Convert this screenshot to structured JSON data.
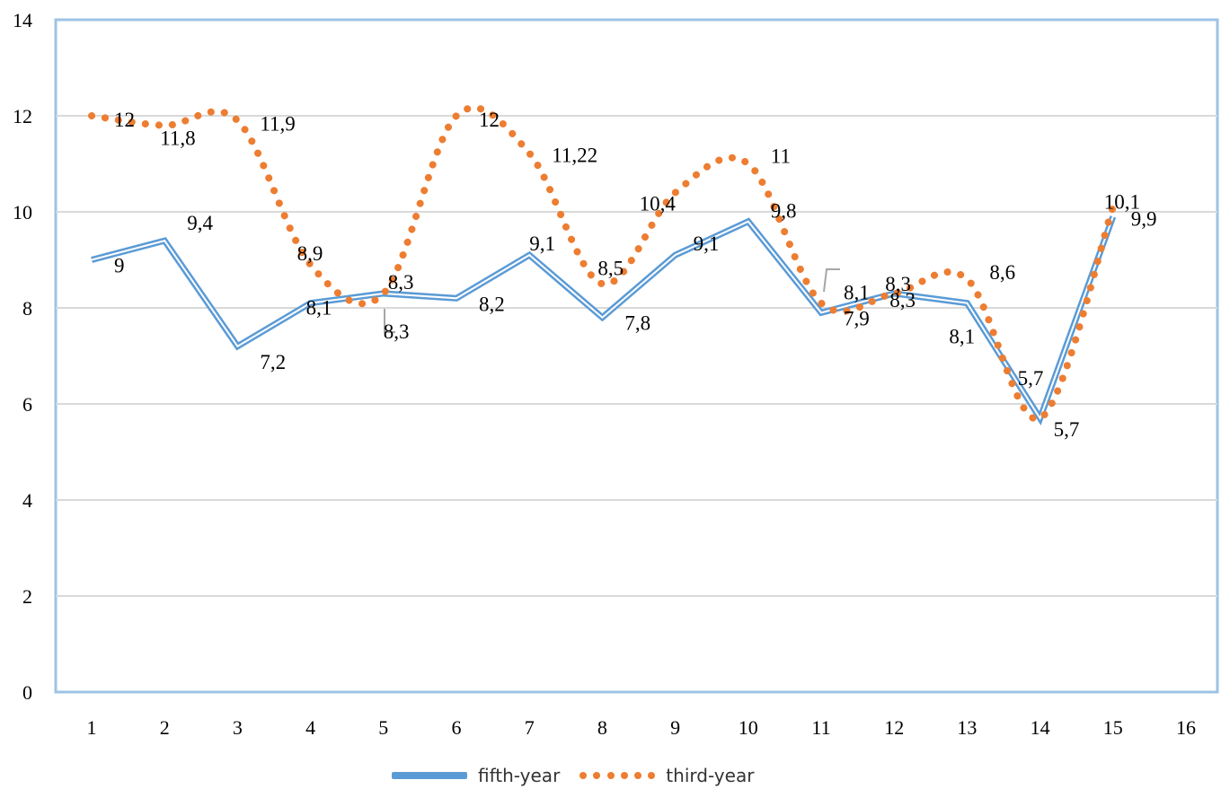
{
  "chart_data": {
    "type": "line",
    "x": [
      1,
      2,
      3,
      4,
      5,
      6,
      7,
      8,
      9,
      10,
      11,
      12,
      13,
      14,
      15
    ],
    "x_ticks": [
      "1",
      "2",
      "3",
      "4",
      "5",
      "6",
      "7",
      "8",
      "9",
      "10",
      "11",
      "12",
      "13",
      "14",
      "15",
      "16"
    ],
    "y_ticks": [
      "0",
      "2",
      "4",
      "6",
      "8",
      "10",
      "12",
      "14"
    ],
    "ylim": [
      0,
      14
    ],
    "grid": true,
    "legend_position": "bottom",
    "series": [
      {
        "name": "fifth-year",
        "color": "#5b9bd5",
        "style": "solid",
        "values": [
          9,
          9.4,
          7.2,
          8.1,
          8.3,
          8.2,
          9.1,
          7.8,
          9.1,
          9.8,
          7.9,
          8.3,
          8.1,
          5.7,
          9.9
        ],
        "labels": [
          "9",
          "9,4",
          "7,2",
          "8,1",
          "8,3",
          "8,2",
          "9,1",
          "7,8",
          "9,1",
          "9,8",
          "7,9",
          "8,3",
          "8,1",
          "5,7",
          "9,9"
        ]
      },
      {
        "name": "third-year",
        "color": "#ed7d31",
        "style": "dotted",
        "values": [
          12,
          11.8,
          11.9,
          8.9,
          8.3,
          12,
          11.22,
          8.5,
          10.4,
          11,
          8.1,
          8.3,
          8.6,
          5.7,
          10.1
        ],
        "labels": [
          "12",
          "11,8",
          "11,9",
          "8,9",
          "8,3",
          "12",
          "11,22",
          "8,5",
          "10,4",
          "11",
          "8,1",
          "8,3",
          "8,6",
          "5,7",
          "10,1"
        ]
      }
    ]
  }
}
